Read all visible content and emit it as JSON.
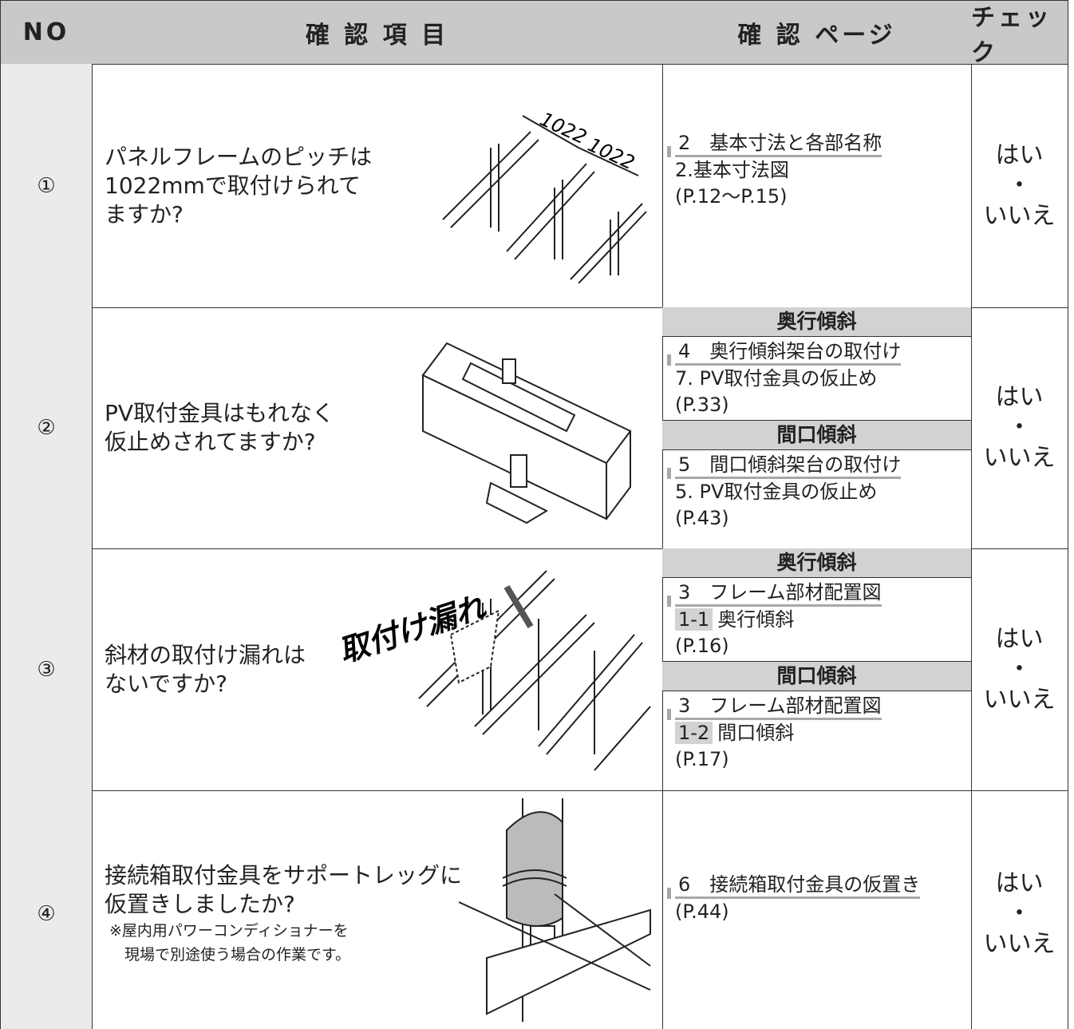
{
  "header": {
    "no": "NO",
    "item": "確 認 項 目",
    "page": "確 認 ページ",
    "check": "チェック"
  },
  "rows": [
    {
      "no": "①",
      "item": [
        "パネルフレームのピッチは",
        "1022mmで取付けられて",
        "ますか?"
      ],
      "figure_labels": [
        "1022",
        "1022"
      ],
      "pages": [
        {
          "ref": "2　基本寸法と各部名称",
          "lines": [
            "2.基本寸法図",
            "(P.12〜P.15)"
          ]
        }
      ],
      "check": [
        "はい",
        "・",
        "いいえ"
      ]
    },
    {
      "no": "②",
      "item": [
        "PV取付金具はもれなく",
        "仮止めされてますか?"
      ],
      "pages": [
        {
          "section": "奥行傾斜",
          "ref": "4　奥行傾斜架台の取付け",
          "lines": [
            "7. PV取付金具の仮止め",
            "(P.33)"
          ]
        },
        {
          "section": "間口傾斜",
          "ref": "5　間口傾斜架台の取付け",
          "lines": [
            "5. PV取付金具の仮止め",
            "(P.43)"
          ]
        }
      ],
      "check": [
        "はい",
        "・",
        "いいえ"
      ]
    },
    {
      "no": "③",
      "item": [
        "斜材の取付け漏れは",
        "ないですか?"
      ],
      "figure_label": "取付け漏れ",
      "pages": [
        {
          "section": "奥行傾斜",
          "ref": "3　フレーム部材配置図",
          "tag": "1-1",
          "tag_text": "奥行傾斜",
          "lines": [
            "(P.16)"
          ]
        },
        {
          "section": "間口傾斜",
          "ref": "3　フレーム部材配置図",
          "tag": "1-2",
          "tag_text": "間口傾斜",
          "lines": [
            "(P.17)"
          ]
        }
      ],
      "check": [
        "はい",
        "・",
        "いいえ"
      ]
    },
    {
      "no": "④",
      "item": [
        "接続箱取付金具をサポートレッグに",
        "仮置きしましたか?"
      ],
      "note": [
        "※屋内用パワーコンディショナーを",
        "　現場で別途使う場合の作業です。"
      ],
      "pages": [
        {
          "ref": "6　接続箱取付金具の仮置き",
          "lines": [
            "(P.44)"
          ]
        }
      ],
      "check": [
        "はい",
        "・",
        "いいえ"
      ]
    }
  ]
}
